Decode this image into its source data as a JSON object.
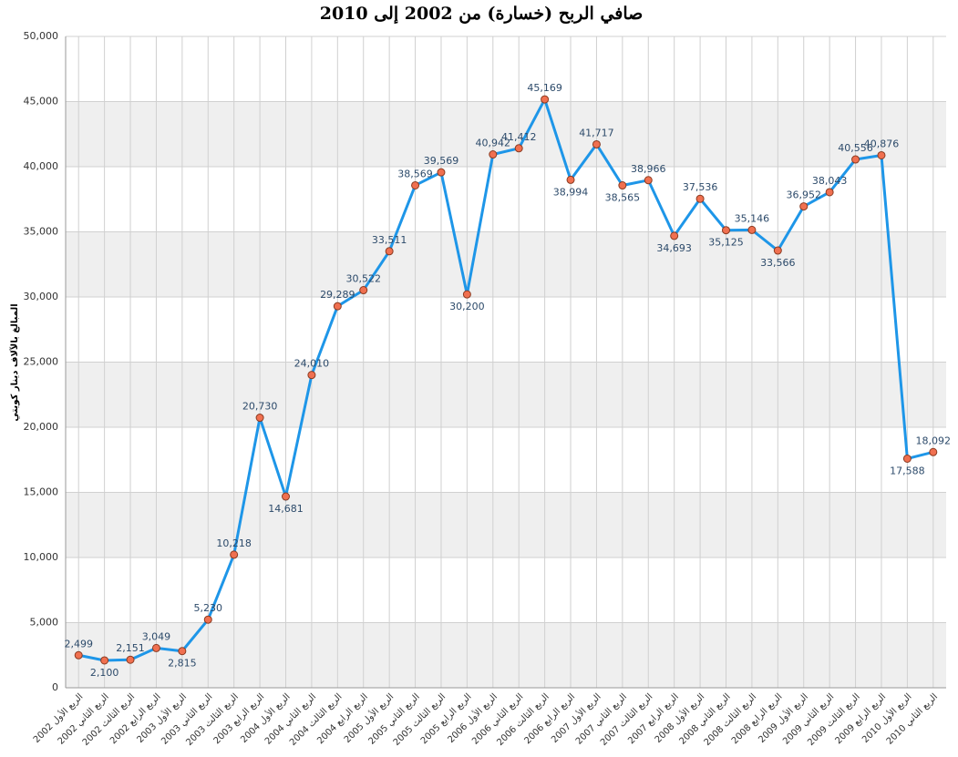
{
  "chart_data": {
    "type": "line",
    "title": "صافي الربح (خسارة) من 2002 إلى 2010",
    "y_label": "المبالغ بالآلاف دينار كويتي",
    "categories": [
      "2002 الربع الأول",
      "2002 الربع الثاني",
      "2002 الربع الثالث",
      "2002 الربع الرابع",
      "2003 الربع الأول",
      "2003 الربع الثاني",
      "2003 الربع الثالث",
      "2003 الربع الرابع",
      "2004 الربع الأول",
      "2004 الربع الثاني",
      "2004 الربع الثالث",
      "2004 الربع الرابع",
      "2005 الربع الأول",
      "2005 الربع الثاني",
      "2005 الربع الثالث",
      "2005 الربع الرابع",
      "2006 الربع الأول",
      "2006 الربع الثاني",
      "2006 الربع الثالث",
      "2006 الربع الرابع",
      "2007 الربع الأول",
      "2007 الربع الثاني",
      "2007 الربع الثالث",
      "2007 الربع الرابع",
      "2008 الربع الأول",
      "2008 الربع الثاني",
      "2008 الربع الثالث",
      "2008 الربع الرابع",
      "2009 الربع الأول",
      "2009 الربع الثاني",
      "2009 الربع الثالث",
      "2009 الربع الرابع",
      "2010 الربع الأول",
      "2010 الربع الثاني"
    ],
    "series": [
      {
        "color": "#1e96e8",
        "marker_color": "#f07050",
        "values": [
          2499,
          2100,
          2151,
          3049,
          2815,
          5230,
          10218,
          20730,
          14681,
          24010,
          29289,
          30522,
          33511,
          38569,
          39569,
          30200,
          40942,
          41412,
          45169,
          38994,
          41717,
          38565,
          38966,
          34693,
          37536,
          35125,
          35146,
          33566,
          36952,
          38043,
          40556,
          40876,
          17588,
          18092
        ],
        "value_labels": [
          "2,499",
          "2,100",
          "2,151",
          "3,049",
          "2,815",
          "5,230",
          "10,218",
          "20,730",
          "14,681",
          "24,010",
          "29,289",
          "30,522",
          "33,511",
          "38,569",
          "39,569",
          "30,200",
          "40,942",
          "41,412",
          "45,169",
          "38,994",
          "41,717",
          "38,565",
          "38,966",
          "34,693",
          "37,536",
          "35,125",
          "35,146",
          "33,566",
          "36,952",
          "38,043",
          "40,556",
          "40,876",
          "17,588",
          "18,092"
        ]
      }
    ],
    "ylim": [
      0,
      50000
    ],
    "yticks": [
      0,
      {
        "value": 5000,
        "label": "5,000"
      },
      {
        "value": 10000,
        "label": "10,000"
      },
      {
        "value": 15000,
        "label": "15,000"
      },
      {
        "value": 20000,
        "label": "20,000"
      },
      {
        "value": 25000,
        "label": "25,000"
      },
      {
        "value": 30000,
        "label": "30,000"
      },
      {
        "value": 35000,
        "label": "35,000"
      },
      {
        "value": 40000,
        "label": "40,000"
      },
      {
        "value": 45000,
        "label": "45,000"
      },
      {
        "value": 50000,
        "label": "50,000"
      }
    ],
    "grid": true
  }
}
